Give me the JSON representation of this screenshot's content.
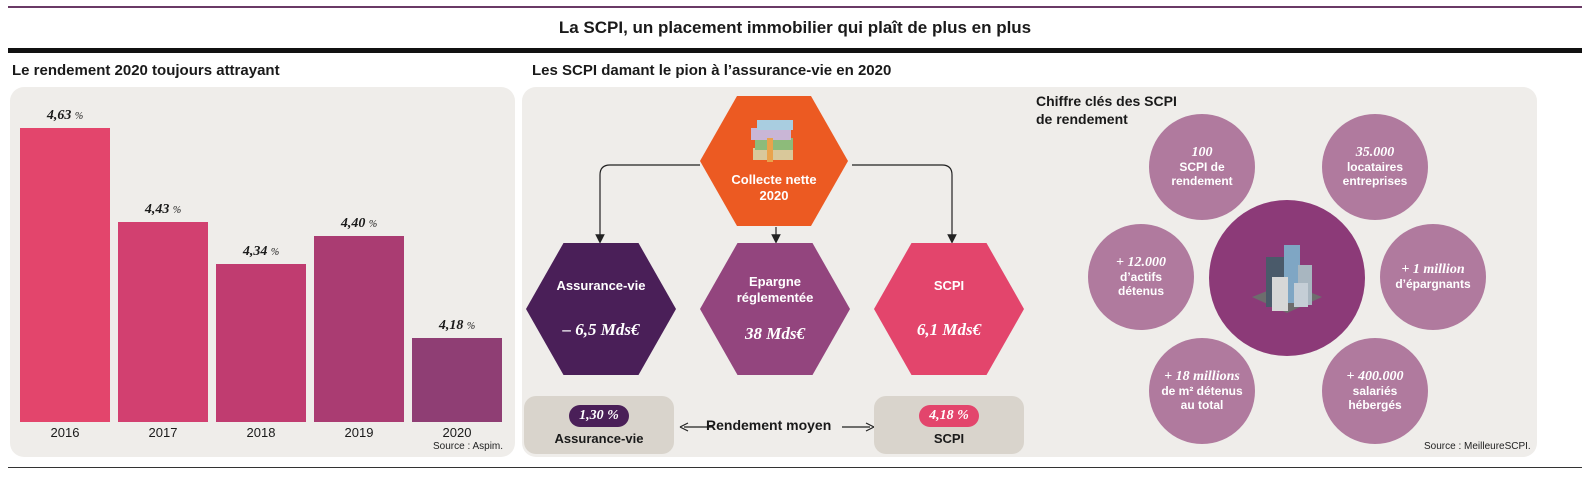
{
  "title": "La SCPI, un placement immobilier qui plaît de plus en plus",
  "left": {
    "heading": "Le rendement 2020 toujours attrayant",
    "source": "Source : Aspim."
  },
  "middle": {
    "heading": "Les SCPI damant le pion à l’assurance-vie en 2020",
    "collecte": {
      "line1": "Collecte nette",
      "line2": "2020"
    },
    "hex": [
      {
        "label": "Assurance-vie",
        "value": "– 6,5 Mds€",
        "color": "#4a1f58"
      },
      {
        "label": "Epargne réglementée",
        "value": "38 Mds€",
        "color": "#93457e"
      },
      {
        "label": "SCPI",
        "value": "6,1 Mds€",
        "color": "#e3456c"
      }
    ],
    "rendement": {
      "label": "Rendement moyen",
      "left": {
        "value": "1,30 %",
        "name": "Assurance-vie"
      },
      "right": {
        "value": "4,18 %",
        "name": "SCPI"
      }
    }
  },
  "right": {
    "heading_line1": "Chiffre clés des SCPI",
    "heading_line2": "de rendement",
    "stats": [
      {
        "value": "100",
        "line1": "SCPI de",
        "line2": "rendement",
        "line3": ""
      },
      {
        "value": "35.000",
        "line1": "locataires",
        "line2": "entreprises",
        "line3": ""
      },
      {
        "value": "+ 12.000",
        "line1": "d’actifs",
        "line2": "détenus",
        "line3": ""
      },
      {
        "value": "+ 1 million",
        "line1": "d’épargnants",
        "line2": "",
        "line3": ""
      },
      {
        "value": "+ 18 millions",
        "line1": "de m² détenus",
        "line2": "au total",
        "line3": ""
      },
      {
        "value": "+ 400.000",
        "line1": "salariés",
        "line2": "hébergés",
        "line3": ""
      }
    ],
    "source": "Source : MeilleureSCPI."
  },
  "chart_data": {
    "type": "bar",
    "title": "Le rendement 2020 toujours attrayant",
    "categories": [
      "2016",
      "2017",
      "2018",
      "2019",
      "2020"
    ],
    "values": [
      4.63,
      4.43,
      4.34,
      4.4,
      4.18
    ],
    "value_labels": [
      "4,63",
      "4,43",
      "4,34",
      "4,40",
      "4,18"
    ],
    "unit": "%",
    "colors": [
      "#e3456c",
      "#d24070",
      "#c03c70",
      "#aa3c72",
      "#8f3e74"
    ],
    "ylim": [
      4.0,
      4.65
    ],
    "grid": false
  }
}
